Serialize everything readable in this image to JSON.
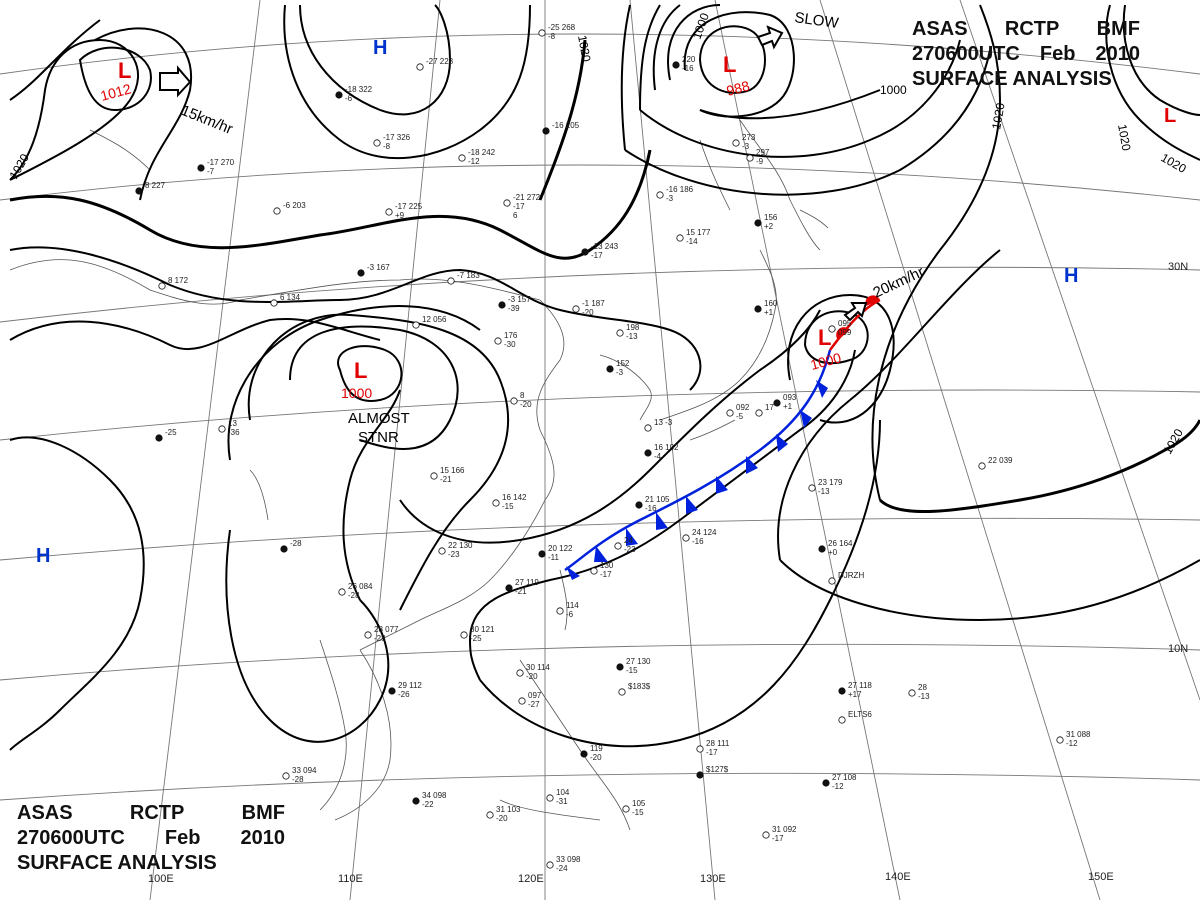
{
  "header": {
    "agency": "ASAS",
    "center": "RCTP",
    "unit": "BMF",
    "datetime": "270600UTC",
    "month": "Feb",
    "year": "2010",
    "product": "SURFACE ANALYSIS"
  },
  "isobar_labels": [
    "1012",
    "1020",
    "1000",
    "988",
    "1000",
    "1020",
    "1020",
    "1020",
    "1020"
  ],
  "pressure_systems": [
    {
      "type": "L",
      "value": "1012",
      "color": "#e00000"
    },
    {
      "type": "L",
      "value": "988",
      "color": "#e00000"
    },
    {
      "type": "L",
      "value": "1000",
      "color": "#e00000"
    },
    {
      "type": "L",
      "value": "1000",
      "color": "#e00000"
    },
    {
      "type": "L",
      "value": "",
      "color": "#e00000"
    },
    {
      "type": "H",
      "value": "",
      "color": "#0033cc"
    },
    {
      "type": "H",
      "value": "",
      "color": "#0033cc"
    },
    {
      "type": "H",
      "value": "",
      "color": "#0033cc"
    }
  ],
  "movement_labels": [
    "15km/hr",
    "20km/hr",
    "SLOW"
  ],
  "system_notes": [
    "ALMOST",
    "STNR"
  ],
  "longitude_labels": [
    "110E",
    "120E",
    "130E",
    "140E",
    "150E",
    "100E"
  ],
  "latitude_labels": [
    "30N",
    "10N"
  ],
  "station_groups": [
    {
      "lines": [
        "-16 205"
      ]
    },
    {
      "lines": [
        "-25 268",
        "-8"
      ]
    },
    {
      "lines": [
        "-27 228"
      ]
    },
    {
      "lines": [
        "-18 322",
        "-6"
      ]
    },
    {
      "lines": [
        "-17 326",
        "-8"
      ]
    },
    {
      "lines": [
        "-18 242",
        "-12"
      ]
    },
    {
      "lines": [
        "-17 270",
        "-7"
      ]
    },
    {
      "lines": [
        "-21 272",
        "-17",
        "6"
      ]
    },
    {
      "lines": [
        "-16 186",
        "-3"
      ]
    },
    {
      "lines": [
        "-13 243",
        "-17"
      ]
    },
    {
      "lines": [
        "-17 225",
        "+9"
      ]
    },
    {
      "lines": [
        "-6 203"
      ]
    },
    {
      "lines": [
        "8 227"
      ]
    },
    {
      "lines": [
        "8 172"
      ]
    },
    {
      "lines": [
        "6 134"
      ]
    },
    {
      "lines": [
        "-3 167"
      ]
    },
    {
      "lines": [
        "-7 183"
      ]
    },
    {
      "lines": [
        "12 056"
      ]
    },
    {
      "lines": [
        "-3 157",
        "-39"
      ]
    },
    {
      "lines": [
        "-1 187",
        "-20"
      ]
    },
    {
      "lines": [
        "15 177",
        "-14"
      ]
    },
    {
      "lines": [
        "156",
        "+2"
      ]
    },
    {
      "lines": [
        "176",
        "-30"
      ]
    },
    {
      "lines": [
        "198",
        "-13"
      ]
    },
    {
      "lines": [
        "152",
        "-3"
      ]
    },
    {
      "lines": [
        "8",
        "-20"
      ]
    },
    {
      "lines": [
        "13",
        "-36"
      ]
    },
    {
      "lines": [
        "-25"
      ]
    },
    {
      "lines": [
        "15 166",
        "-21"
      ]
    },
    {
      "lines": [
        "16 142",
        "-15"
      ]
    },
    {
      "lines": [
        "21 105",
        "-16"
      ]
    },
    {
      "lines": [
        "24 124",
        "-16"
      ]
    },
    {
      "lines": [
        "22 130",
        "-23"
      ]
    },
    {
      "lines": [
        "20 122",
        "-11"
      ]
    },
    {
      "lines": [
        "130",
        "-17"
      ]
    },
    {
      "lines": [
        "24",
        "-23"
      ]
    },
    {
      "lines": [
        "-28"
      ]
    },
    {
      "lines": [
        "26 084",
        "-28"
      ]
    },
    {
      "lines": [
        "28 077",
        "-28"
      ]
    },
    {
      "lines": [
        "27 119",
        "-21"
      ]
    },
    {
      "lines": [
        "114",
        "-6"
      ]
    },
    {
      "lines": [
        "30 121",
        "-25"
      ]
    },
    {
      "lines": [
        "29 112",
        "-26"
      ]
    },
    {
      "lines": [
        "30 114",
        "-20"
      ]
    },
    {
      "lines": [
        "097",
        "-27"
      ]
    },
    {
      "lines": [
        "27 130",
        "-15"
      ]
    },
    {
      "lines": [
        "$183$"
      ]
    },
    {
      "lines": [
        "33 094",
        "-28"
      ]
    },
    {
      "lines": [
        "34 098",
        "-22"
      ]
    },
    {
      "lines": [
        "31 103",
        "-20"
      ]
    },
    {
      "lines": [
        "104",
        "-31"
      ]
    },
    {
      "lines": [
        "119",
        "-20"
      ]
    },
    {
      "lines": [
        "105",
        "-15"
      ]
    },
    {
      "lines": [
        "28 111",
        "-17"
      ]
    },
    {
      "lines": [
        "$127$"
      ]
    },
    {
      "lines": [
        "33 098",
        "-24"
      ]
    },
    {
      "lines": [
        "31 092",
        "-17"
      ]
    },
    {
      "lines": [
        "27 118",
        "+17"
      ]
    },
    {
      "lines": [
        "ELTS6"
      ]
    },
    {
      "lines": [
        "28",
        "-13"
      ]
    },
    {
      "lines": [
        "27 108",
        "-12"
      ]
    },
    {
      "lines": [
        "31 088",
        "-12"
      ]
    },
    {
      "lines": [
        "23 179",
        "-13"
      ]
    },
    {
      "lines": [
        "26 164",
        "+0"
      ]
    },
    {
      "lines": [
        "DJRZH"
      ]
    },
    {
      "lines": [
        "22 039"
      ]
    },
    {
      "lines": [
        "093",
        "+1"
      ]
    },
    {
      "lines": [
        "095",
        "099"
      ]
    },
    {
      "lines": [
        "13 -3"
      ]
    },
    {
      "lines": [
        "16 102",
        "-4"
      ]
    },
    {
      "lines": [
        "092",
        "-5"
      ]
    },
    {
      "lines": [
        "17"
      ]
    },
    {
      "lines": [
        "160",
        "+1"
      ]
    },
    {
      "lines": [
        "273",
        "-3"
      ]
    },
    {
      "lines": [
        "297",
        "-9"
      ]
    },
    {
      "lines": [
        "220",
        "-16"
      ]
    }
  ],
  "colors": {
    "isobar": "#000000",
    "low": "#e00000",
    "high": "#0033cc",
    "cold_front": "#0022dd",
    "warm_front": "#e00000",
    "coast": "#555555",
    "grid": "#777777"
  }
}
